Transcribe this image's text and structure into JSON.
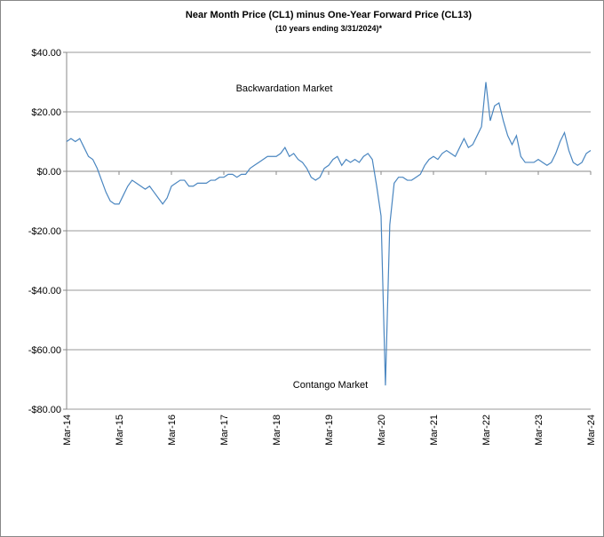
{
  "chart_data": {
    "type": "line",
    "title": "Near Month Price (CL1) minus One-Year Forward Price (CL13)",
    "subtitle": "(10 years ending  3/31/2024)*",
    "annotations": [
      "Backwardation Market",
      "Contango Market"
    ],
    "categories": [
      "Mar-14",
      null,
      null,
      null,
      null,
      null,
      null,
      null,
      null,
      null,
      null,
      null,
      "Mar-15",
      null,
      null,
      null,
      null,
      null,
      null,
      null,
      null,
      null,
      null,
      null,
      "Mar-16",
      null,
      null,
      null,
      null,
      null,
      null,
      null,
      null,
      null,
      null,
      null,
      "Mar-17",
      null,
      null,
      null,
      null,
      null,
      null,
      null,
      null,
      null,
      null,
      null,
      "Mar-18",
      null,
      null,
      null,
      null,
      null,
      null,
      null,
      null,
      null,
      null,
      null,
      "Mar-19",
      null,
      null,
      null,
      null,
      null,
      null,
      null,
      null,
      null,
      null,
      null,
      "Mar-20",
      null,
      null,
      null,
      null,
      null,
      null,
      null,
      null,
      null,
      null,
      null,
      "Mar-21",
      null,
      null,
      null,
      null,
      null,
      null,
      null,
      null,
      null,
      null,
      null,
      "Mar-22",
      null,
      null,
      null,
      null,
      null,
      null,
      null,
      null,
      null,
      null,
      null,
      "Mar-23",
      null,
      null,
      null,
      null,
      null,
      null,
      null,
      null,
      null,
      null,
      null,
      "Mar-24"
    ],
    "series": [
      {
        "name": "CL1 minus CL13",
        "color": "#4a86c0",
        "values": [
          10,
          11,
          10,
          11,
          8,
          5,
          4,
          1,
          -3,
          -7,
          -10,
          -11,
          -11,
          -8,
          -5,
          -3,
          -4,
          -5,
          -6,
          -5,
          -7,
          -9,
          -11,
          -9,
          -5,
          -4,
          -3,
          -3,
          -5,
          -5,
          -4,
          -4,
          -4,
          -3,
          -3,
          -2,
          -2,
          -1,
          -1,
          -2,
          -1,
          -1,
          1,
          2,
          3,
          4,
          5,
          5,
          5,
          6,
          8,
          5,
          6,
          4,
          3,
          1,
          -2,
          -3,
          -2,
          1,
          2,
          4,
          5,
          2,
          4,
          3,
          4,
          3,
          5,
          6,
          4,
          -5,
          -15,
          -72,
          -18,
          -4,
          -2,
          -2,
          -3,
          -3,
          -2,
          -1,
          2,
          4,
          5,
          4,
          6,
          7,
          6,
          5,
          8,
          11,
          8,
          9,
          12,
          15,
          30,
          17,
          22,
          23,
          17,
          12,
          9,
          12,
          5,
          3,
          3,
          3,
          4,
          3,
          2,
          3,
          6,
          10,
          13,
          7,
          3,
          2,
          3,
          6,
          7
        ]
      }
    ],
    "ylim": [
      -80,
      40
    ],
    "yticks": [
      {
        "value": -80,
        "label": "-$80.00"
      },
      {
        "value": -60,
        "label": "-$60.00"
      },
      {
        "value": -40,
        "label": "-$40.00"
      },
      {
        "value": -20,
        "label": "-$20.00"
      },
      {
        "value": 0,
        "label": "$0.00"
      },
      {
        "value": 20,
        "label": "$20.00"
      },
      {
        "value": 40,
        "label": "$40.00"
      }
    ],
    "grid": true
  }
}
